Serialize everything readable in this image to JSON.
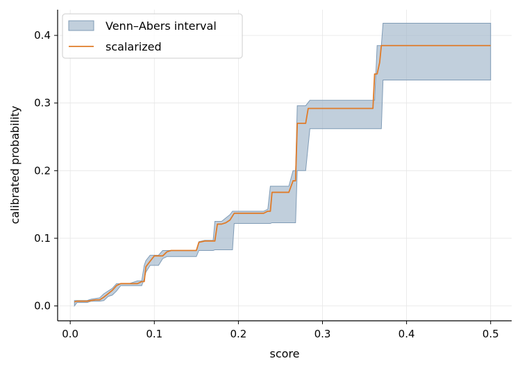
{
  "chart_data": {
    "type": "line",
    "title": "",
    "xlabel": "score",
    "ylabel": "calibrated probability",
    "xlim": [
      -0.015,
      0.525
    ],
    "ylim": [
      -0.022,
      0.438
    ],
    "xticks": [
      0.0,
      0.1,
      0.2,
      0.3,
      0.4,
      0.5
    ],
    "xtick_labels": [
      "0.0",
      "0.1",
      "0.2",
      "0.3",
      "0.4",
      "0.5"
    ],
    "yticks": [
      0.0,
      0.1,
      0.2,
      0.3,
      0.4
    ],
    "ytick_labels": [
      "0.0",
      "0.1",
      "0.2",
      "0.3",
      "0.4"
    ],
    "grid": true,
    "legend_position": "top-left",
    "colors": {
      "interval_fill": "#9fb5c9",
      "interval_edge": "#7f9bb6",
      "line": "#e07b28",
      "grid": "#e6e6e6"
    },
    "series": [
      {
        "name": "Venn–Abers interval",
        "kind": "band",
        "x": [
          0.005,
          0.008,
          0.02,
          0.025,
          0.035,
          0.04,
          0.045,
          0.05,
          0.055,
          0.06,
          0.065,
          0.07,
          0.08,
          0.085,
          0.088,
          0.09,
          0.095,
          0.1,
          0.105,
          0.11,
          0.115,
          0.12,
          0.13,
          0.14,
          0.15,
          0.153,
          0.16,
          0.17,
          0.172,
          0.175,
          0.18,
          0.185,
          0.19,
          0.193,
          0.195,
          0.2,
          0.21,
          0.22,
          0.23,
          0.235,
          0.238,
          0.24,
          0.25,
          0.26,
          0.265,
          0.268,
          0.27,
          0.275,
          0.28,
          0.285,
          0.29,
          0.3,
          0.32,
          0.34,
          0.36,
          0.362,
          0.365,
          0.368,
          0.37,
          0.372,
          0.38,
          0.4,
          0.45,
          0.5
        ],
        "lower": [
          0.0,
          0.005,
          0.005,
          0.007,
          0.007,
          0.008,
          0.014,
          0.016,
          0.022,
          0.03,
          0.03,
          0.03,
          0.03,
          0.03,
          0.04,
          0.05,
          0.06,
          0.06,
          0.06,
          0.07,
          0.073,
          0.073,
          0.073,
          0.073,
          0.073,
          0.082,
          0.082,
          0.082,
          0.083,
          0.083,
          0.083,
          0.083,
          0.083,
          0.083,
          0.122,
          0.122,
          0.122,
          0.122,
          0.122,
          0.122,
          0.122,
          0.123,
          0.123,
          0.123,
          0.123,
          0.123,
          0.2,
          0.2,
          0.2,
          0.262,
          0.262,
          0.262,
          0.262,
          0.262,
          0.262,
          0.262,
          0.262,
          0.262,
          0.262,
          0.334,
          0.334,
          0.334,
          0.334,
          0.334
        ],
        "upper": [
          0.008,
          0.008,
          0.008,
          0.01,
          0.012,
          0.018,
          0.022,
          0.026,
          0.033,
          0.033,
          0.033,
          0.033,
          0.037,
          0.037,
          0.06,
          0.067,
          0.075,
          0.075,
          0.075,
          0.082,
          0.082,
          0.082,
          0.082,
          0.082,
          0.082,
          0.095,
          0.097,
          0.097,
          0.125,
          0.125,
          0.125,
          0.13,
          0.135,
          0.14,
          0.14,
          0.14,
          0.14,
          0.14,
          0.14,
          0.143,
          0.177,
          0.177,
          0.177,
          0.177,
          0.2,
          0.2,
          0.296,
          0.296,
          0.296,
          0.304,
          0.304,
          0.304,
          0.304,
          0.304,
          0.304,
          0.304,
          0.385,
          0.385,
          0.385,
          0.418,
          0.418,
          0.418,
          0.418,
          0.418
        ]
      },
      {
        "name": "scalarized",
        "kind": "line",
        "x": [
          0.005,
          0.008,
          0.02,
          0.025,
          0.03,
          0.035,
          0.04,
          0.045,
          0.05,
          0.055,
          0.06,
          0.065,
          0.07,
          0.08,
          0.085,
          0.088,
          0.09,
          0.095,
          0.1,
          0.105,
          0.11,
          0.115,
          0.12,
          0.13,
          0.14,
          0.15,
          0.153,
          0.16,
          0.17,
          0.172,
          0.175,
          0.18,
          0.185,
          0.19,
          0.195,
          0.2,
          0.21,
          0.22,
          0.23,
          0.235,
          0.238,
          0.24,
          0.25,
          0.26,
          0.265,
          0.268,
          0.27,
          0.275,
          0.28,
          0.283,
          0.29,
          0.3,
          0.32,
          0.34,
          0.36,
          0.362,
          0.365,
          0.368,
          0.37,
          0.372,
          0.38,
          0.4,
          0.45,
          0.5
        ],
        "y": [
          0.006,
          0.007,
          0.007,
          0.008,
          0.009,
          0.009,
          0.013,
          0.018,
          0.023,
          0.03,
          0.033,
          0.033,
          0.033,
          0.033,
          0.036,
          0.036,
          0.058,
          0.066,
          0.074,
          0.074,
          0.074,
          0.08,
          0.082,
          0.082,
          0.082,
          0.082,
          0.094,
          0.096,
          0.096,
          0.096,
          0.121,
          0.121,
          0.123,
          0.127,
          0.137,
          0.137,
          0.137,
          0.137,
          0.137,
          0.14,
          0.14,
          0.168,
          0.168,
          0.168,
          0.185,
          0.185,
          0.27,
          0.27,
          0.27,
          0.292,
          0.292,
          0.292,
          0.292,
          0.292,
          0.292,
          0.343,
          0.343,
          0.36,
          0.385,
          0.385,
          0.385,
          0.385,
          0.385,
          0.385
        ]
      }
    ],
    "legend": [
      "Venn–Abers interval",
      "scalarized"
    ]
  }
}
